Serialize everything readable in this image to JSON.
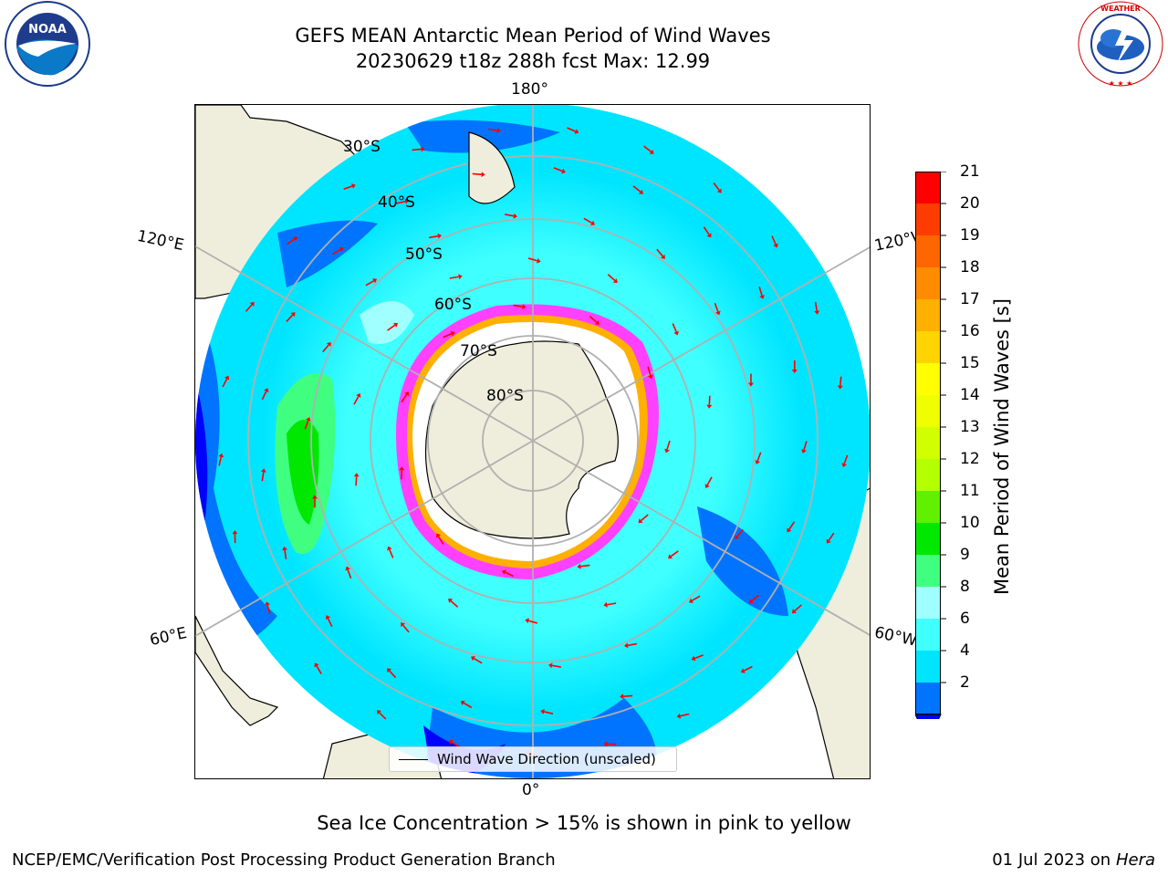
{
  "title": {
    "line1": "GEFS MEAN Antarctic Mean Period of Wind Waves",
    "line2": "20230629 t18z 288h fcst   Max: 12.99"
  },
  "map": {
    "projection": "south-polar-stereographic",
    "lon_labels": [
      "180°",
      "120°E",
      "120°W",
      "60°E",
      "60°W",
      "0°"
    ],
    "lat_labels": [
      "30°S",
      "40°S",
      "50°S",
      "60°S",
      "70°S",
      "80°S"
    ],
    "legend_label": "Wind Wave Direction (unscaled)",
    "arrow_color": "#ff0000",
    "land_color": "#efeedc",
    "ocean_colors": [
      "#0000ff",
      "#0074ff",
      "#00e5ff",
      "#40ffff",
      "#a0ffff",
      "#40ff80",
      "#00e800"
    ]
  },
  "colorbar": {
    "label": "Mean Period of Wind Waves [s]",
    "ticks": [
      "21",
      "20",
      "19",
      "18",
      "17",
      "16",
      "15",
      "14",
      "13",
      "12",
      "11",
      "10",
      "9",
      "8",
      "6",
      "4",
      "2"
    ],
    "colors": [
      "#ff0000",
      "#ff3c00",
      "#ff6600",
      "#ff8c00",
      "#ffb000",
      "#ffd400",
      "#ffff00",
      "#f0ff00",
      "#d2ff00",
      "#b4ff00",
      "#60f000",
      "#00e800",
      "#40ff80",
      "#a0ffff",
      "#40ffff",
      "#00e5ff",
      "#0074ff"
    ],
    "under_color": "#0000ff"
  },
  "footer": {
    "note": "Sea Ice Concentration > 15% is shown in pink to yellow",
    "credit": "NCEP/EMC/Verification Post Processing Product Generation Branch",
    "date": "01 Jul 2023 on ",
    "system": "Hera"
  },
  "logos": {
    "noaa": "NOAA",
    "noaa_ring": "NATIONAL OCEANIC AND ATMOSPHERIC ADMINISTRATION · U.S. DEPARTMENT OF COMMERCE",
    "nws_ring": "NATIONAL WEATHER SERVICE"
  }
}
